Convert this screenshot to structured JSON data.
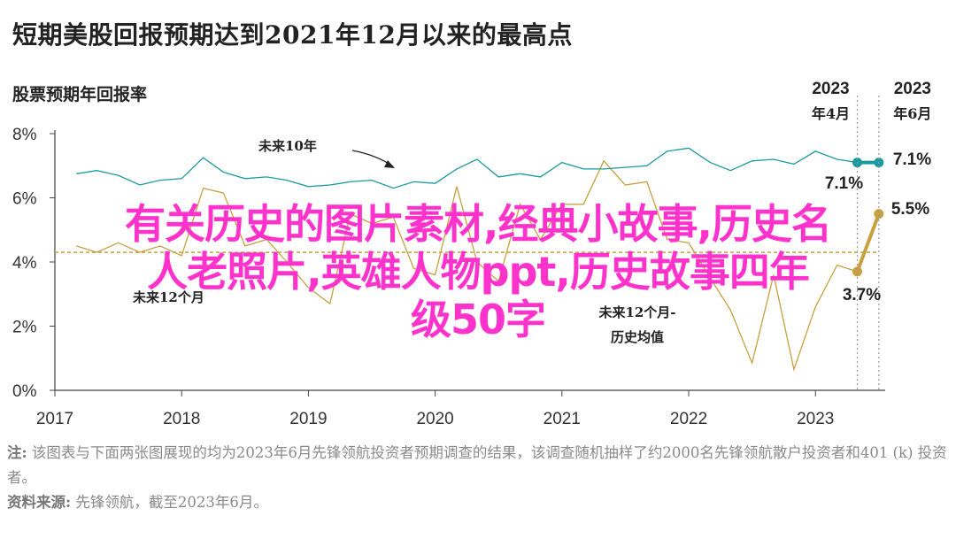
{
  "title": "短期美股回报预期达到2021年12月以来的最高点",
  "overlay_text": {
    "line1": "有关历史的图片素材,经典小故事,历史名",
    "line2": "人老照片,英雄人物ppt,历史故事四年",
    "line3": "级50字"
  },
  "note_prefix": "注:",
  "note_text": "该图表与下面两张图展现的均为2023年6月先锋领航投资者预期调查的结果，该调查随机抽样了约2000名先锋领航散户投资者和401 (k) 投资者。",
  "source_prefix": "资料来源:",
  "source_text": "先锋领航，截至2023年6月。",
  "chart_data": {
    "type": "line",
    "ylabel": "股票预期年回报率",
    "ylim": [
      0,
      8
    ],
    "yticks": [
      0,
      2,
      4,
      6,
      8
    ],
    "ytick_labels": [
      "0%",
      "2%",
      "4%",
      "6%",
      "8%"
    ],
    "xlim": [
      2017,
      2023.55
    ],
    "xticks": [
      2017,
      2018,
      2019,
      2020,
      2021,
      2022,
      2023
    ],
    "xtick_labels": [
      "2017",
      "2018",
      "2019",
      "2020",
      "2021",
      "2022",
      "2023"
    ],
    "grid": false,
    "colors": {
      "ten_year": "#1a9aa0",
      "twelve_month": "#c8a040",
      "hist": "#c8a040"
    },
    "series": [
      {
        "name": "未来10年",
        "x": [
          2017.17,
          2017.33,
          2017.5,
          2017.67,
          2017.83,
          2018.0,
          2018.17,
          2018.33,
          2018.5,
          2018.67,
          2018.83,
          2019.0,
          2019.17,
          2019.33,
          2019.5,
          2019.67,
          2019.83,
          2020.0,
          2020.17,
          2020.33,
          2020.5,
          2020.67,
          2020.83,
          2021.0,
          2021.17,
          2021.33,
          2021.5,
          2021.67,
          2021.83,
          2022.0,
          2022.17,
          2022.33,
          2022.5,
          2022.67,
          2022.83,
          2023.0,
          2023.17,
          2023.33,
          2023.5
        ],
        "values": [
          6.75,
          6.85,
          6.7,
          6.4,
          6.55,
          6.6,
          7.25,
          6.8,
          6.6,
          6.65,
          6.55,
          6.35,
          6.4,
          6.5,
          6.55,
          6.3,
          6.5,
          6.45,
          6.9,
          7.2,
          6.65,
          6.75,
          6.65,
          7.1,
          6.9,
          6.9,
          6.95,
          7.0,
          7.45,
          7.55,
          7.1,
          6.85,
          7.15,
          7.2,
          7.05,
          7.45,
          7.2,
          7.1,
          7.1
        ]
      },
      {
        "name": "未来12个月",
        "x": [
          2017.17,
          2017.33,
          2017.5,
          2017.67,
          2017.83,
          2018.0,
          2018.17,
          2018.33,
          2018.5,
          2018.67,
          2018.83,
          2019.0,
          2019.17,
          2019.33,
          2019.5,
          2019.67,
          2019.83,
          2020.0,
          2020.17,
          2020.33,
          2020.5,
          2020.67,
          2020.83,
          2021.0,
          2021.17,
          2021.33,
          2021.5,
          2021.67,
          2021.83,
          2022.0,
          2022.17,
          2022.33,
          2022.5,
          2022.67,
          2022.83,
          2023.0,
          2023.17,
          2023.33,
          2023.5
        ],
        "values": [
          4.5,
          4.3,
          4.6,
          4.3,
          4.5,
          4.2,
          6.3,
          6.15,
          4.5,
          4.7,
          4.0,
          3.2,
          2.7,
          5.5,
          5.2,
          5.4,
          3.8,
          3.6,
          6.35,
          4.0,
          3.4,
          5.8,
          4.7,
          5.8,
          5.8,
          7.15,
          6.4,
          6.5,
          4.7,
          4.6,
          3.5,
          2.5,
          0.85,
          3.6,
          0.65,
          2.6,
          3.9,
          3.7,
          5.5
        ]
      },
      {
        "name": "未来12个月-历史均值",
        "x": [
          2017,
          2023.5
        ],
        "values": [
          4.3,
          4.3
        ]
      }
    ],
    "annotations": {
      "ten_year_label": "未来10年",
      "twelve_month_label": "未来12个月",
      "hist_label_line1": "未来12个月-",
      "hist_label_line2": "历史均值",
      "apr_label_line1": "2023",
      "apr_label_line2": "年4月",
      "jun_label_line1": "2023",
      "jun_label_line2": "年6月",
      "apr_ten_year_value": "7.1%",
      "jun_ten_year_value": "7.1%",
      "apr_twelve_month_value": "3.7%",
      "jun_twelve_month_value": "5.5%"
    }
  }
}
